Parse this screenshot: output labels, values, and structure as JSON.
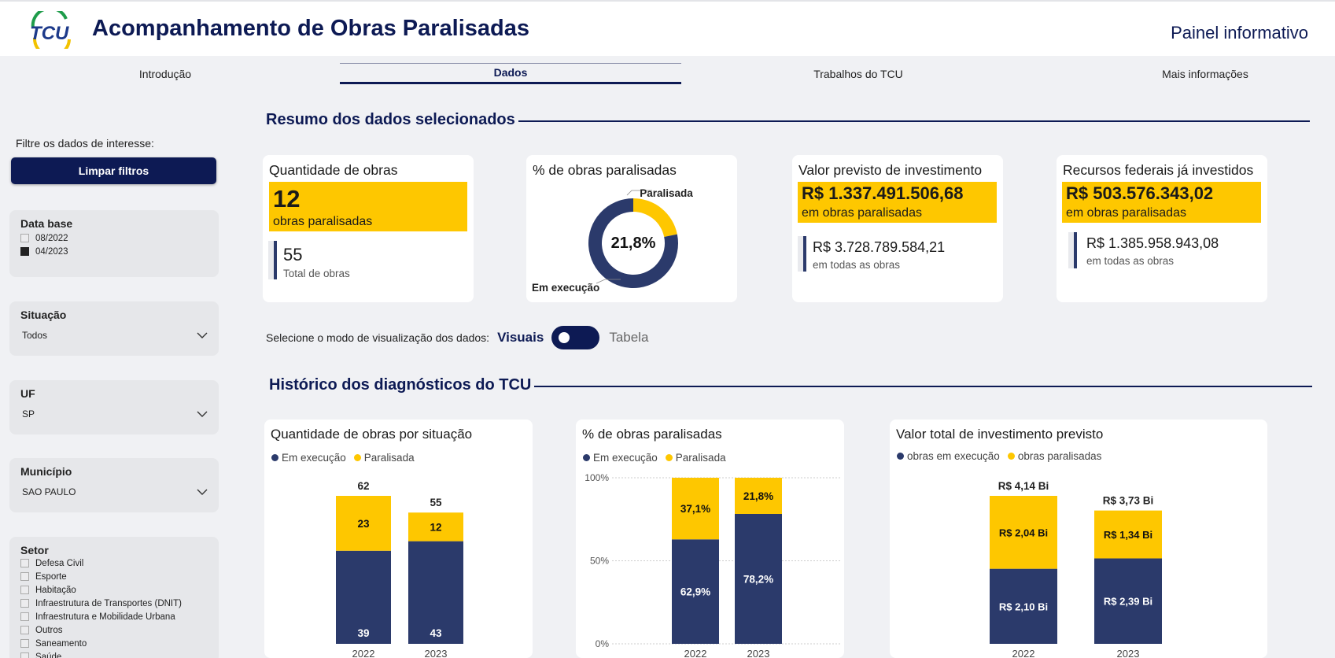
{
  "header": {
    "logo_text": "TCU",
    "title": "Acompanhamento de Obras Paralisadas",
    "subtitle": "Painel informativo"
  },
  "nav": {
    "tabs": [
      {
        "label": "Introdução",
        "active": false
      },
      {
        "label": "Dados",
        "active": true
      },
      {
        "label": "Trabalhos do TCU",
        "active": false
      },
      {
        "label": "Mais informações",
        "active": false
      }
    ]
  },
  "sidebar": {
    "prompt": "Filtre os dados de interesse:",
    "clear_button": "Limpar filtros",
    "data_base": {
      "title": "Data base",
      "options": [
        {
          "label": "08/2022",
          "checked": false
        },
        {
          "label": "04/2023",
          "checked": true
        }
      ]
    },
    "situacao": {
      "title": "Situação",
      "value": "Todos"
    },
    "uf": {
      "title": "UF",
      "value": "SP"
    },
    "municipio": {
      "title": "Município",
      "value": "SAO PAULO"
    },
    "setor": {
      "title": "Setor",
      "options": [
        "Defesa Civil",
        "Esporte",
        "Habitação",
        "Infraestrutura de Transportes (DNIT)",
        "Infraestrutura e Mobilidade Urbana",
        "Outros",
        "Saneamento",
        "Saúde"
      ]
    }
  },
  "resumo": {
    "heading": "Resumo dos dados selecionados",
    "quantidade": {
      "title": "Quantidade de obras",
      "value": "12",
      "value_caption": "obras paralisadas",
      "total": "55",
      "total_caption": "Total de obras"
    },
    "percent": {
      "title": "% de obras paralisadas",
      "center": "21,8%",
      "label_paralisada": "Paralisada",
      "label_execucao": "Em execução",
      "fraction_paralisada": 0.218
    },
    "valor_previsto": {
      "title": "Valor previsto de investimento",
      "value": "R$ 1.337.491.506,68",
      "value_caption": "em obras paralisadas",
      "total": "R$ 3.728.789.584,21",
      "total_caption": "em todas as obras"
    },
    "recursos": {
      "title": "Recursos federais já investidos",
      "value": "R$ 503.576.343,02",
      "value_caption": "em obras paralisadas",
      "total": "R$ 1.385.958.943,08",
      "total_caption": "em todas as obras"
    }
  },
  "mode": {
    "label": "Selecione o modo de visualização dos dados:",
    "option_visual": "Visuais",
    "option_table": "Tabela"
  },
  "historico": {
    "heading": "Histórico dos diagnósticos do TCU"
  },
  "colors": {
    "navy": "#0d1a54",
    "execucao": "#2b3a6b",
    "paralisada": "#fec700"
  },
  "chart_data": [
    {
      "type": "bar",
      "stacked": true,
      "title": "Quantidade de obras por situação",
      "categories": [
        "2022",
        "2023"
      ],
      "series": [
        {
          "name": "Em execução",
          "values": [
            39,
            43
          ],
          "labels": [
            "39",
            "43"
          ]
        },
        {
          "name": "Paralisada",
          "values": [
            23,
            12
          ],
          "labels": [
            "23",
            "12"
          ]
        }
      ],
      "totals": [
        "62",
        "55"
      ],
      "legend_position": "top-left"
    },
    {
      "type": "bar",
      "stacked": true,
      "title": "% de obras paralisadas",
      "categories": [
        "2022",
        "2023"
      ],
      "series": [
        {
          "name": "Em execução",
          "values": [
            62.9,
            78.2
          ],
          "labels": [
            "62,9%",
            "78,2%"
          ]
        },
        {
          "name": "Paralisada",
          "values": [
            37.1,
            21.8
          ],
          "labels": [
            "37,1%",
            "21,8%"
          ]
        }
      ],
      "ylim": [
        0,
        100
      ],
      "yticks": [
        "0%",
        "50%",
        "100%"
      ],
      "legend_position": "top-left"
    },
    {
      "type": "bar",
      "stacked": true,
      "title": "Valor total de investimento previsto",
      "categories": [
        "2022",
        "2023"
      ],
      "series": [
        {
          "name": "obras em execução",
          "values": [
            2.1,
            2.39
          ],
          "labels": [
            "R$ 2,10 Bi",
            "R$ 2,39 Bi"
          ]
        },
        {
          "name": "obras paralisadas",
          "values": [
            2.04,
            1.34
          ],
          "labels": [
            "R$ 2,04 Bi",
            "R$ 1,34 Bi"
          ]
        }
      ],
      "totals": [
        "R$ 4,14 Bi",
        "R$ 3,73 Bi"
      ],
      "legend_position": "top-left"
    }
  ]
}
